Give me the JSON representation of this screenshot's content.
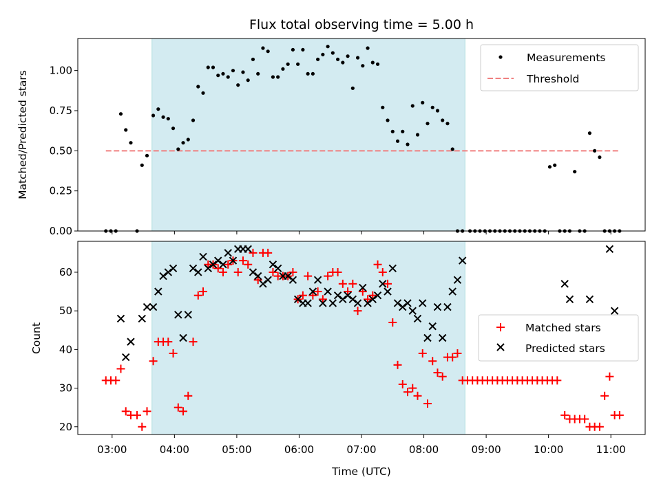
{
  "chart_data": [
    {
      "type": "scatter",
      "title": "Flux total observing time = 5.00 h",
      "xlabel": "",
      "ylabel": "Matched/Predicted stars",
      "ylim": [
        0,
        1.2
      ],
      "yticks": [
        0,
        0.25,
        0.5,
        0.75,
        1.0
      ],
      "ytick_labels": [
        "0.00",
        "0.25",
        "0.50",
        "0.75",
        "1.00"
      ],
      "x_unit": "hours (UTC)",
      "xlim": [
        2.45,
        11.55
      ],
      "xticks": [
        3,
        4,
        5,
        6,
        7,
        8,
        9,
        10,
        11
      ],
      "shaded_region": {
        "x": [
          3.64,
          8.66
        ],
        "color": "#d3ebf1"
      },
      "legend_position": "upper right",
      "series": [
        {
          "name": "Measurements",
          "marker": "dot",
          "color": "#000000",
          "x": [
            2.9,
            2.98,
            3.06,
            3.14,
            3.22,
            3.3,
            3.4,
            3.48,
            3.56,
            3.66,
            3.74,
            3.82,
            3.9,
            3.98,
            4.06,
            4.14,
            4.22,
            4.3,
            4.38,
            4.46,
            4.54,
            4.62,
            4.7,
            4.78,
            4.86,
            4.94,
            5.02,
            5.1,
            5.18,
            5.26,
            5.34,
            5.42,
            5.5,
            5.58,
            5.66,
            5.74,
            5.82,
            5.9,
            5.98,
            6.06,
            6.14,
            6.22,
            6.3,
            6.38,
            6.46,
            6.54,
            6.62,
            6.7,
            6.78,
            6.86,
            6.94,
            7.02,
            7.1,
            7.18,
            7.26,
            7.34,
            7.42,
            7.5,
            7.58,
            7.66,
            7.74,
            7.82,
            7.9,
            7.98,
            8.06,
            8.14,
            8.22,
            8.3,
            8.38,
            8.46,
            8.54,
            8.62,
            8.74,
            8.82,
            8.9,
            8.98,
            9.06,
            9.14,
            9.22,
            9.3,
            9.38,
            9.46,
            9.54,
            9.62,
            9.7,
            9.78,
            9.86,
            9.94,
            10.02,
            10.1,
            10.18,
            10.26,
            10.34,
            10.42,
            10.5,
            10.58,
            10.66,
            10.74,
            10.82,
            10.9,
            10.98,
            11.06,
            11.14
          ],
          "y": [
            0,
            0,
            0,
            0.73,
            0.63,
            0.55,
            0,
            0.41,
            0.47,
            0.72,
            0.76,
            0.71,
            0.7,
            0.64,
            0.51,
            0.55,
            0.57,
            0.69,
            0.9,
            0.86,
            1.02,
            1.02,
            0.97,
            0.98,
            0.96,
            1.0,
            0.91,
            0.99,
            0.94,
            1.07,
            0.98,
            1.14,
            1.12,
            0.96,
            0.96,
            1.01,
            1.04,
            1.13,
            1.04,
            1.13,
            0.98,
            0.98,
            1.07,
            1.1,
            1.15,
            1.11,
            1.07,
            1.05,
            1.09,
            0.89,
            1.08,
            1.03,
            1.14,
            1.05,
            1.04,
            0.77,
            0.69,
            0.62,
            0.56,
            0.62,
            0.54,
            0.78,
            0.6,
            0.8,
            0.67,
            0.77,
            0.75,
            0.69,
            0.67,
            0.51,
            0,
            0,
            0,
            0,
            0,
            0,
            0,
            0,
            0,
            0,
            0,
            0,
            0,
            0,
            0,
            0,
            0,
            0,
            0.4,
            0.41,
            0,
            0,
            0,
            0.37,
            0,
            0,
            0.61,
            0.5,
            0.46,
            0,
            0,
            0,
            0
          ],
          "y_note": "zeros shown for points with no data"
        },
        {
          "name": "Threshold",
          "marker": "dashed-line",
          "color": "#f08080",
          "x": [
            2.9,
            11.14
          ],
          "y": [
            0.5,
            0.5
          ]
        }
      ]
    },
    {
      "type": "scatter",
      "title": "",
      "xlabel": "Time (UTC)",
      "ylabel": "Count",
      "ylim": [
        18,
        68
      ],
      "yticks": [
        20,
        30,
        40,
        50,
        60
      ],
      "x_unit": "hours (UTC)",
      "xlim": [
        2.45,
        11.55
      ],
      "xticks": [
        3,
        4,
        5,
        6,
        7,
        8,
        9,
        10,
        11
      ],
      "xtick_labels": [
        "03:00",
        "04:00",
        "05:00",
        "06:00",
        "07:00",
        "08:00",
        "09:00",
        "10:00",
        "11:00"
      ],
      "shaded_region": {
        "x": [
          3.64,
          8.66
        ],
        "color": "#d3ebf1"
      },
      "legend_position": "center right",
      "series": [
        {
          "name": "Matched stars",
          "marker": "plus",
          "color": "#ff0000",
          "x": [
            2.9,
            2.98,
            3.06,
            3.14,
            3.22,
            3.3,
            3.4,
            3.48,
            3.56,
            3.66,
            3.74,
            3.82,
            3.9,
            3.98,
            4.06,
            4.14,
            4.22,
            4.3,
            4.38,
            4.46,
            4.54,
            4.62,
            4.7,
            4.78,
            4.86,
            4.94,
            5.02,
            5.1,
            5.18,
            5.26,
            5.34,
            5.42,
            5.5,
            5.58,
            5.66,
            5.74,
            5.82,
            5.9,
            5.98,
            6.06,
            6.14,
            6.22,
            6.3,
            6.38,
            6.46,
            6.54,
            6.62,
            6.7,
            6.78,
            6.86,
            6.94,
            7.02,
            7.1,
            7.18,
            7.26,
            7.34,
            7.42,
            7.5,
            7.58,
            7.66,
            7.74,
            7.82,
            7.9,
            7.98,
            8.06,
            8.14,
            8.22,
            8.3,
            8.38,
            8.46,
            8.54,
            8.62,
            8.7,
            8.78,
            8.86,
            8.94,
            9.02,
            9.1,
            9.18,
            9.26,
            9.34,
            9.42,
            9.5,
            9.58,
            9.66,
            9.74,
            9.82,
            9.9,
            9.98,
            10.06,
            10.14,
            10.26,
            10.34,
            10.42,
            10.5,
            10.58,
            10.66,
            10.74,
            10.82,
            10.9,
            10.98,
            11.06,
            11.14
          ],
          "y": [
            32,
            32,
            32,
            35,
            24,
            23,
            23,
            20,
            24,
            37,
            42,
            42,
            42,
            39,
            25,
            24,
            28,
            42,
            54,
            55,
            62,
            62,
            61,
            60,
            62,
            63,
            60,
            63,
            62,
            65,
            58,
            65,
            65,
            60,
            59,
            59,
            59,
            60,
            53,
            54,
            59,
            54,
            55,
            53,
            59,
            60,
            60,
            57,
            55,
            57,
            50,
            55,
            53,
            54,
            62,
            60,
            57,
            47,
            36,
            31,
            29,
            30,
            28,
            39,
            26,
            37,
            34,
            33,
            38,
            38,
            39,
            32,
            32,
            32,
            32,
            32,
            32,
            32,
            32,
            32,
            32,
            32,
            32,
            32,
            32,
            32,
            32,
            32,
            32,
            32,
            32,
            23,
            22,
            22,
            22,
            22,
            20,
            20,
            20,
            28,
            33,
            23,
            23
          ]
        },
        {
          "name": "Predicted stars",
          "marker": "x",
          "color": "#000000",
          "x": [
            3.14,
            3.22,
            3.3,
            3.48,
            3.56,
            3.66,
            3.74,
            3.82,
            3.9,
            3.98,
            4.06,
            4.14,
            4.22,
            4.3,
            4.38,
            4.46,
            4.54,
            4.62,
            4.7,
            4.78,
            4.86,
            4.94,
            5.02,
            5.1,
            5.18,
            5.26,
            5.34,
            5.42,
            5.5,
            5.58,
            5.66,
            5.74,
            5.82,
            5.9,
            5.98,
            6.06,
            6.14,
            6.22,
            6.3,
            6.38,
            6.46,
            6.54,
            6.62,
            6.7,
            6.78,
            6.86,
            6.94,
            7.02,
            7.1,
            7.18,
            7.26,
            7.34,
            7.42,
            7.5,
            7.58,
            7.66,
            7.74,
            7.82,
            7.9,
            7.98,
            8.06,
            8.14,
            8.22,
            8.3,
            8.38,
            8.46,
            8.54,
            8.62,
            10.26,
            10.34,
            10.66,
            10.98,
            11.06
          ],
          "y": [
            48,
            38,
            42,
            48,
            51,
            51,
            55,
            59,
            60,
            61,
            49,
            43,
            49,
            61,
            60,
            64,
            61,
            62,
            63,
            62,
            65,
            63,
            66,
            66,
            66,
            60,
            59,
            57,
            58,
            62,
            61,
            59,
            59,
            58,
            53,
            52,
            52,
            55,
            58,
            52,
            55,
            52,
            54,
            53,
            54,
            53,
            52,
            56,
            52,
            53,
            54,
            57,
            55,
            61,
            52,
            51,
            52,
            50,
            48,
            52,
            43,
            46,
            51,
            43,
            51,
            55,
            58,
            63,
            57,
            53,
            53,
            66,
            50
          ]
        }
      ]
    }
  ]
}
